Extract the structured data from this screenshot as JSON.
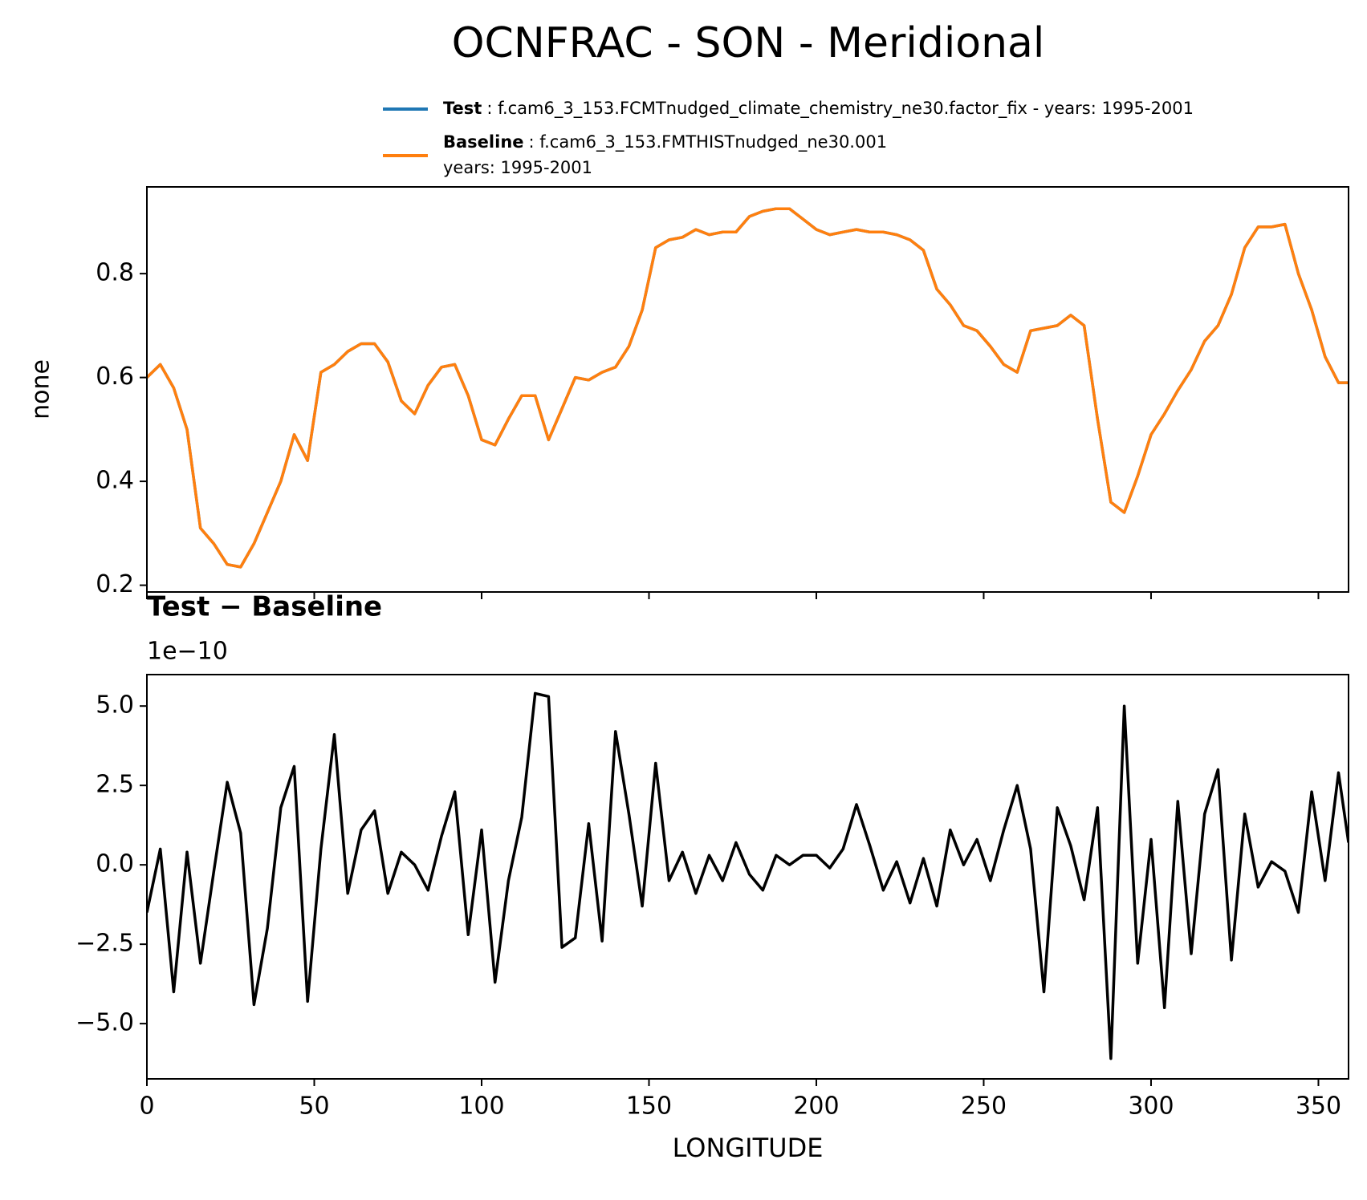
{
  "title": "OCNFRAC - SON - Meridional",
  "chart_data": [
    {
      "type": "line",
      "ylabel": "none",
      "xlim": [
        0,
        359
      ],
      "ylim": [
        0.187,
        0.967
      ],
      "yticks": [
        0.2,
        0.4,
        0.6,
        0.8
      ],
      "xticks": [
        0,
        50,
        100,
        150,
        200,
        250,
        300,
        350
      ],
      "xticklabels": false,
      "legend": "upper center",
      "x": [
        0,
        4,
        8,
        12,
        16,
        20,
        24,
        28,
        32,
        36,
        40,
        44,
        48,
        52,
        56,
        60,
        64,
        68,
        72,
        76,
        80,
        84,
        88,
        92,
        96,
        100,
        104,
        108,
        112,
        116,
        120,
        124,
        128,
        132,
        136,
        140,
        144,
        148,
        152,
        156,
        160,
        164,
        168,
        172,
        176,
        180,
        184,
        188,
        192,
        196,
        200,
        204,
        208,
        212,
        216,
        220,
        224,
        228,
        232,
        236,
        240,
        244,
        248,
        252,
        256,
        260,
        264,
        268,
        272,
        276,
        280,
        284,
        288,
        292,
        296,
        300,
        304,
        308,
        312,
        316,
        320,
        324,
        328,
        332,
        336,
        340,
        344,
        348,
        352,
        356,
        359
      ],
      "series": [
        {
          "name": "Test",
          "description": ": f.cam6_3_153.FCMTnudged_climate_chemistry_ne30.factor_fix - years: 1995-2001",
          "color": "#1f77b4",
          "values": [
            0.6,
            0.625,
            0.58,
            0.5,
            0.31,
            0.28,
            0.24,
            0.235,
            0.28,
            0.34,
            0.4,
            0.49,
            0.44,
            0.61,
            0.625,
            0.65,
            0.665,
            0.665,
            0.63,
            0.555,
            0.53,
            0.585,
            0.62,
            0.625,
            0.565,
            0.48,
            0.47,
            0.52,
            0.565,
            0.565,
            0.48,
            0.54,
            0.6,
            0.595,
            0.61,
            0.62,
            0.66,
            0.73,
            0.85,
            0.865,
            0.87,
            0.885,
            0.875,
            0.88,
            0.88,
            0.91,
            0.92,
            0.925,
            0.925,
            0.905,
            0.885,
            0.875,
            0.88,
            0.885,
            0.88,
            0.88,
            0.875,
            0.865,
            0.845,
            0.77,
            0.74,
            0.7,
            0.69,
            0.66,
            0.625,
            0.61,
            0.69,
            0.695,
            0.7,
            0.72,
            0.7,
            0.52,
            0.36,
            0.34,
            0.41,
            0.49,
            0.53,
            0.575,
            0.615,
            0.67,
            0.7,
            0.76,
            0.85,
            0.89,
            0.89,
            0.895,
            0.8,
            0.73,
            0.64,
            0.59,
            0.59
          ]
        },
        {
          "name": "Baseline",
          "description": [
            ": f.cam6_3_153.FMTHISTnudged_ne30.001",
            "years: 1995-2001"
          ],
          "color": "#ff7f0e",
          "values": [
            0.6,
            0.625,
            0.58,
            0.5,
            0.31,
            0.28,
            0.24,
            0.235,
            0.28,
            0.34,
            0.4,
            0.49,
            0.44,
            0.61,
            0.625,
            0.65,
            0.665,
            0.665,
            0.63,
            0.555,
            0.53,
            0.585,
            0.62,
            0.625,
            0.565,
            0.48,
            0.47,
            0.52,
            0.565,
            0.565,
            0.48,
            0.54,
            0.6,
            0.595,
            0.61,
            0.62,
            0.66,
            0.73,
            0.85,
            0.865,
            0.87,
            0.885,
            0.875,
            0.88,
            0.88,
            0.91,
            0.92,
            0.925,
            0.925,
            0.905,
            0.885,
            0.875,
            0.88,
            0.885,
            0.88,
            0.88,
            0.875,
            0.865,
            0.845,
            0.77,
            0.74,
            0.7,
            0.69,
            0.66,
            0.625,
            0.61,
            0.69,
            0.695,
            0.7,
            0.72,
            0.7,
            0.52,
            0.36,
            0.34,
            0.41,
            0.49,
            0.53,
            0.575,
            0.615,
            0.67,
            0.7,
            0.76,
            0.85,
            0.89,
            0.89,
            0.895,
            0.8,
            0.73,
            0.64,
            0.59,
            0.59
          ]
        }
      ]
    },
    {
      "type": "line",
      "title": "Test − Baseline",
      "offset_label": "1e−10",
      "xlabel": "LONGITUDE",
      "xlim": [
        0,
        359
      ],
      "ylim": [
        -6.74,
        5.99
      ],
      "yticks": [
        {
          "value": -5,
          "label": "−5.0"
        },
        {
          "value": -2.5,
          "label": "−2.5"
        },
        {
          "value": 0,
          "label": "0.0"
        },
        {
          "value": 2.5,
          "label": "2.5"
        },
        {
          "value": 5,
          "label": "5.0"
        }
      ],
      "xticks": [
        0,
        50,
        100,
        150,
        200,
        250,
        300,
        350
      ],
      "color": "#000000",
      "x": [
        0,
        4,
        8,
        12,
        16,
        20,
        24,
        28,
        32,
        36,
        40,
        44,
        48,
        52,
        56,
        60,
        64,
        68,
        72,
        76,
        80,
        84,
        88,
        92,
        96,
        100,
        104,
        108,
        112,
        116,
        120,
        124,
        128,
        132,
        136,
        140,
        144,
        148,
        152,
        156,
        160,
        164,
        168,
        172,
        176,
        180,
        184,
        188,
        192,
        196,
        200,
        204,
        208,
        212,
        216,
        220,
        224,
        228,
        232,
        236,
        240,
        244,
        248,
        252,
        256,
        260,
        264,
        268,
        272,
        276,
        280,
        284,
        288,
        292,
        296,
        300,
        304,
        308,
        312,
        316,
        320,
        324,
        328,
        332,
        336,
        340,
        344,
        348,
        352,
        356,
        359
      ],
      "values": [
        -1.5,
        0.5,
        -4.0,
        0.4,
        -3.1,
        -0.2,
        2.6,
        1.0,
        -4.4,
        -2.0,
        1.8,
        3.1,
        -4.3,
        0.5,
        4.1,
        -0.9,
        1.1,
        1.7,
        -0.9,
        0.4,
        0.0,
        -0.8,
        0.9,
        2.3,
        -2.2,
        1.1,
        -3.7,
        -0.5,
        1.5,
        5.4,
        5.3,
        -2.6,
        -2.3,
        1.3,
        -2.4,
        4.2,
        1.6,
        -1.3,
        3.2,
        -0.5,
        0.4,
        -0.9,
        0.3,
        -0.5,
        0.7,
        -0.3,
        -0.8,
        0.3,
        0.0,
        0.3,
        0.3,
        -0.1,
        0.5,
        1.9,
        0.6,
        -0.8,
        0.1,
        -1.2,
        0.2,
        -1.3,
        1.1,
        0.0,
        0.8,
        -0.5,
        1.1,
        2.5,
        0.5,
        -4.0,
        1.8,
        0.6,
        -1.1,
        1.8,
        -6.1,
        5.0,
        -3.1,
        0.8,
        -4.5,
        2.0,
        -2.8,
        1.6,
        3.0,
        -3.0,
        1.6,
        -0.7,
        0.1,
        -0.2,
        -1.5,
        2.3,
        -0.5,
        2.9,
        0.7
      ]
    }
  ]
}
